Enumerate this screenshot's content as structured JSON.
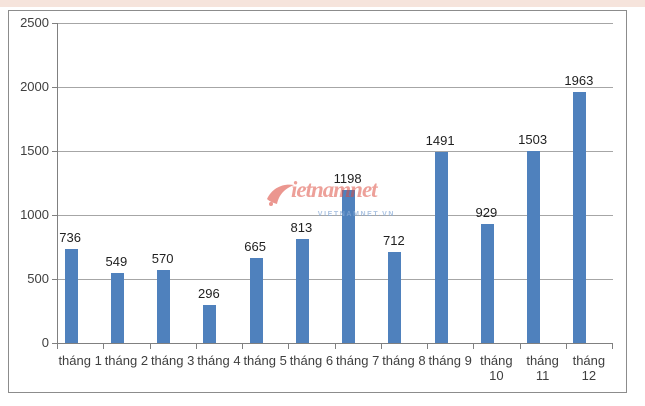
{
  "colors": {
    "bar": "#4F81BD",
    "gridline": "#A6A6A6",
    "axis": "#808080",
    "frame": "#8C8C8C",
    "top_strip": "#F6E4DC",
    "value_label_text": "#1F1F1F",
    "axis_label_text": "#3F3F3F",
    "watermark_red": "rgba(221,72,60,0.65)",
    "watermark_blue": "rgba(137,171,214,0.9)"
  },
  "watermark": {
    "brand": "ietnamnet",
    "subtitle": "VIETNAMNET.VN",
    "logo": "red-swoosh-v-icon"
  },
  "chart_data": {
    "type": "bar",
    "title": "",
    "xlabel": "",
    "ylabel": "",
    "categories": [
      "tháng 1",
      "tháng 2",
      "tháng 3",
      "tháng 4",
      "tháng 5",
      "tháng 6",
      "tháng 7",
      "tháng 8",
      "tháng 9",
      "tháng 10",
      "tháng 11",
      "tháng 12"
    ],
    "tick_labels": [
      "tháng 1",
      "tháng 2",
      "tháng 3",
      "tháng 4",
      "tháng 5",
      "tháng 6",
      "tháng 7",
      "tháng 8",
      "tháng 9",
      "tháng\n10",
      "tháng\n11",
      "tháng\n12"
    ],
    "values": [
      736,
      549,
      570,
      296,
      665,
      813,
      1198,
      712,
      1491,
      929,
      1503,
      1963
    ],
    "data_labels_shown": true,
    "yticks": [
      0,
      500,
      1000,
      1500,
      2000,
      2500
    ],
    "ylim": [
      0,
      2500
    ],
    "grid": true,
    "legend": false,
    "bar_color": "#4F81BD"
  }
}
